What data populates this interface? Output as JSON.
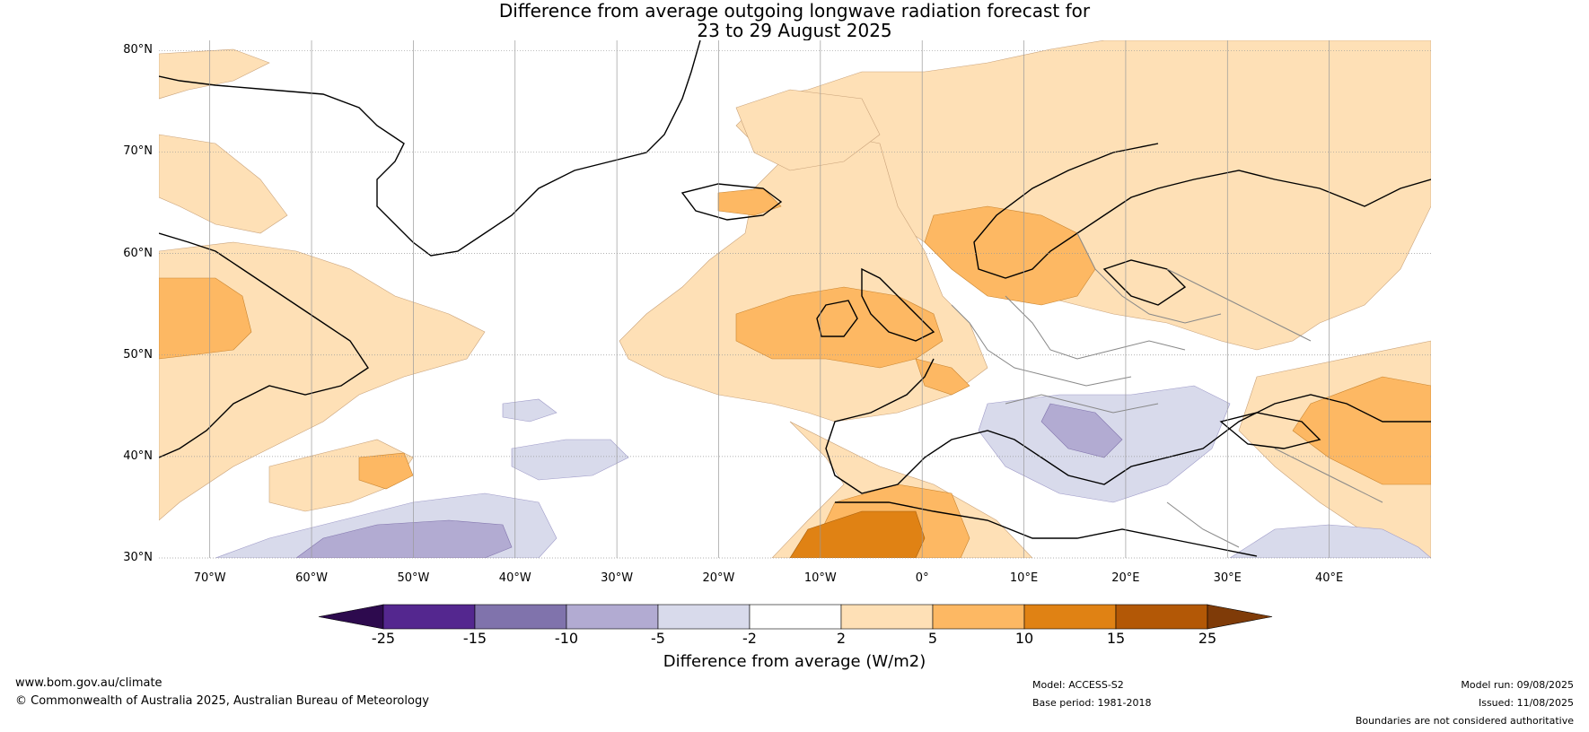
{
  "title": {
    "line1": "Difference from average outgoing longwave radiation forecast for",
    "line2": "23 to 29 August 2025"
  },
  "map": {
    "lat_labels": [
      "80°N",
      "70°N",
      "60°N",
      "50°N",
      "40°N",
      "30°N"
    ],
    "lon_labels": [
      "70°W",
      "60°W",
      "50°W",
      "40°W",
      "30°W",
      "20°W",
      "10°W",
      "0°",
      "10°E",
      "20°E",
      "30°E",
      "40°E"
    ],
    "lat_range": [
      30,
      81
    ],
    "lon_range": [
      -75,
      50
    ],
    "gridlines": true
  },
  "colorbar": {
    "title": "Difference from average (W/m2)",
    "tick_labels": [
      "-25",
      "-15",
      "-10",
      "-5",
      "-2",
      "2",
      "5",
      "10",
      "15",
      "25"
    ],
    "bins": [
      {
        "from": "-inf",
        "to": -25,
        "color": "#2d0a4e"
      },
      {
        "from": -25,
        "to": -15,
        "color": "#54278f"
      },
      {
        "from": -15,
        "to": -10,
        "color": "#8073ac"
      },
      {
        "from": -10,
        "to": -5,
        "color": "#b2abd2"
      },
      {
        "from": -5,
        "to": -2,
        "color": "#d8daeb"
      },
      {
        "from": -2,
        "to": 2,
        "color": "#ffffff"
      },
      {
        "from": 2,
        "to": 5,
        "color": "#fee0b6"
      },
      {
        "from": 5,
        "to": 10,
        "color": "#fdb863"
      },
      {
        "from": 10,
        "to": 15,
        "color": "#e08214"
      },
      {
        "from": 15,
        "to": 25,
        "color": "#b35806"
      },
      {
        "from": 25,
        "to": "inf",
        "color": "#7f3b08"
      }
    ]
  },
  "footer": {
    "website": "www.bom.gov.au/climate",
    "copyright": "© Commonwealth of Australia 2025, Australian Bureau of Meteorology",
    "model": "Model: ACCESS-S2",
    "base_period": "Base period: 1981-2018",
    "model_run": "Model run: 09/08/2025",
    "issued": "Issued: 11/08/2025",
    "disclaimer": "Boundaries are not considered authoritative"
  }
}
